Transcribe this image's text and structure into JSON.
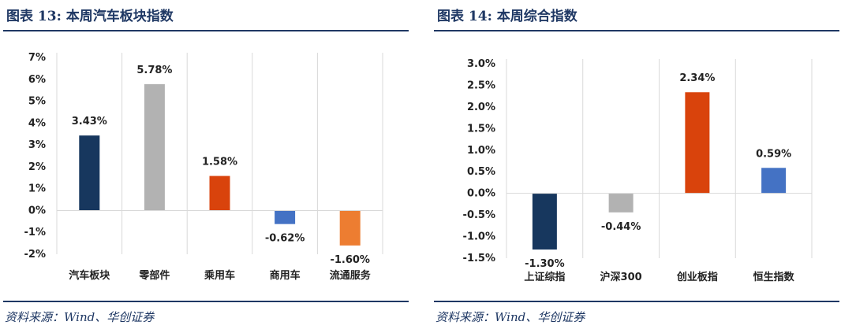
{
  "left_panel": {
    "title": "图表 13:  本周汽车板块指数",
    "source": "资料来源：Wind、华创证券"
  },
  "right_panel": {
    "title": "图表 14:  本周综合指数",
    "source": "资料来源：Wind、华创证券"
  },
  "chart_data": [
    {
      "type": "bar",
      "title": "",
      "xlabel": "",
      "ylabel": "",
      "categories": [
        "汽车板块",
        "零部件",
        "乘用车",
        "商用车",
        "流通服务"
      ],
      "values": [
        3.43,
        5.78,
        1.58,
        -0.62,
        -1.6
      ],
      "data_labels": [
        "3.43%",
        "5.78%",
        "1.58%",
        "-0.62%",
        "-1.60%"
      ],
      "colors": [
        "#17375e",
        "#b2b2b2",
        "#d9430c",
        "#4472c4",
        "#ed7d31"
      ],
      "ylim": [
        -2,
        7
      ],
      "yticks": [
        7,
        6,
        5,
        4,
        3,
        2,
        1,
        0,
        -1,
        -2
      ],
      "ytick_labels": [
        "7%",
        "6%",
        "5%",
        "4%",
        "3%",
        "2%",
        "1%",
        "0%",
        "-1%",
        "-2%"
      ],
      "grid": "vertical"
    },
    {
      "type": "bar",
      "title": "",
      "xlabel": "",
      "ylabel": "",
      "categories": [
        "上证综指",
        "沪深300",
        "创业板指",
        "恒生指数"
      ],
      "values": [
        -1.3,
        -0.44,
        2.34,
        0.59
      ],
      "data_labels": [
        "-1.30%",
        "-0.44%",
        "2.34%",
        "0.59%"
      ],
      "colors": [
        "#17375e",
        "#b2b2b2",
        "#d9430c",
        "#4472c4"
      ],
      "ylim": [
        -1.5,
        3.0
      ],
      "yticks": [
        3.0,
        2.5,
        2.0,
        1.5,
        1.0,
        0.5,
        0.0,
        -0.5,
        -1.0,
        -1.5
      ],
      "ytick_labels": [
        "3.0%",
        "2.5%",
        "2.0%",
        "1.5%",
        "1.0%",
        "0.5%",
        "0.0%",
        "-0.5%",
        "-1.0%",
        "-1.5%"
      ],
      "grid": "vertical"
    }
  ]
}
